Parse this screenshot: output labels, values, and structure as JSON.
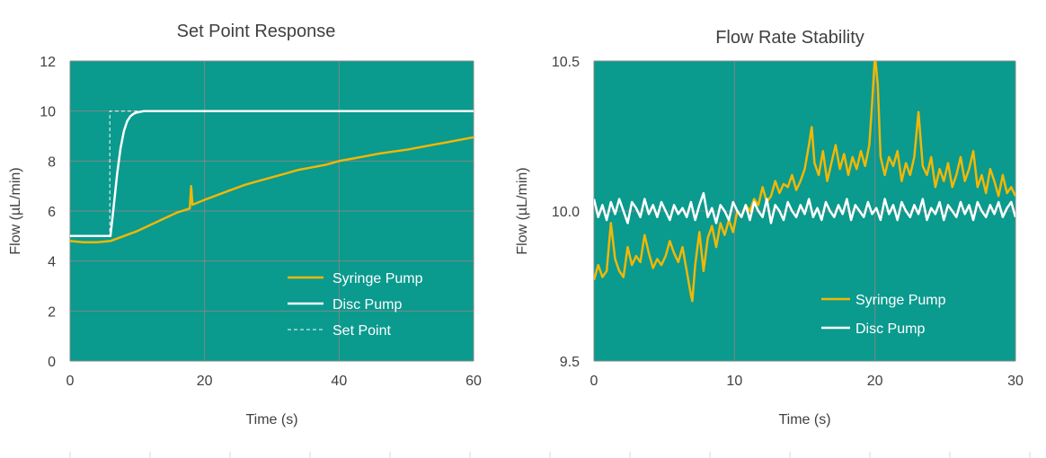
{
  "colors": {
    "plot_background": "#0a9a8e",
    "grid": "#7b8a86",
    "syringe": "#f2b705",
    "disc": "#ffffff",
    "setpoint": "#ffffff",
    "text": "#404040"
  },
  "chart_data": [
    {
      "type": "line",
      "title": "Set Point Response",
      "xlabel": "Time (s)",
      "ylabel": "Flow (µL/min)",
      "xlim": [
        0,
        60
      ],
      "ylim": [
        0,
        12
      ],
      "x_ticks": [
        0,
        20,
        40,
        60
      ],
      "x_tick_labels": [
        "0",
        "20",
        "40",
        "60"
      ],
      "y_ticks": [
        0,
        2,
        4,
        6,
        8,
        10,
        12
      ],
      "y_tick_labels": [
        "0",
        "2",
        "4",
        "6",
        "8",
        "10",
        "12"
      ],
      "grid": true,
      "legend_position": "bottom-right",
      "series": [
        {
          "name": "Syringe Pump",
          "style": "solid",
          "x": [
            0,
            2,
            4,
            6,
            8,
            10,
            12,
            14,
            16,
            17.8,
            18.0,
            18.2,
            20,
            22,
            24,
            26,
            28,
            30,
            32,
            34,
            36,
            38,
            40,
            42,
            44,
            46,
            48,
            50,
            52,
            54,
            56,
            58,
            60
          ],
          "y": [
            4.8,
            4.75,
            4.75,
            4.8,
            5.0,
            5.2,
            5.45,
            5.7,
            5.95,
            6.1,
            7.0,
            6.25,
            6.45,
            6.65,
            6.85,
            7.05,
            7.2,
            7.35,
            7.5,
            7.65,
            7.75,
            7.85,
            8.0,
            8.1,
            8.2,
            8.3,
            8.38,
            8.45,
            8.55,
            8.65,
            8.75,
            8.85,
            8.95
          ]
        },
        {
          "name": "Disc Pump",
          "style": "solid",
          "x": [
            0,
            2,
            4,
            6,
            6.5,
            7,
            7.5,
            8,
            8.5,
            9,
            9.5,
            10,
            11,
            12,
            15,
            20,
            25,
            30,
            35,
            40,
            45,
            50,
            55,
            60
          ],
          "y": [
            5.0,
            5.0,
            5.0,
            5.0,
            6.2,
            7.5,
            8.5,
            9.2,
            9.6,
            9.8,
            9.9,
            9.95,
            10.0,
            10.0,
            10.0,
            10.0,
            10.0,
            10.0,
            10.0,
            10.0,
            10.0,
            10.0,
            10.0,
            10.0
          ]
        },
        {
          "name": "Set Point",
          "style": "dashed",
          "x": [
            0,
            5.9,
            5.9,
            60
          ],
          "y": [
            5.0,
            5.0,
            10.0,
            10.0
          ]
        }
      ]
    },
    {
      "type": "line",
      "title": "Flow Rate Stability",
      "xlabel": "Time (s)",
      "ylabel": "Flow (µL/min)",
      "xlim": [
        0,
        30
      ],
      "ylim": [
        9.5,
        10.5
      ],
      "x_ticks": [
        0,
        10,
        20,
        30
      ],
      "x_tick_labels": [
        "0",
        "10",
        "20",
        "30"
      ],
      "y_ticks": [
        9.5,
        10.0,
        10.5
      ],
      "y_tick_labels": [
        "9.5",
        "10.0",
        "10.5"
      ],
      "grid": true,
      "legend_position": "bottom-right",
      "series": [
        {
          "name": "Syringe Pump",
          "style": "solid",
          "x": [
            0,
            0.3,
            0.6,
            0.9,
            1.2,
            1.5,
            1.8,
            2.1,
            2.4,
            2.7,
            3.0,
            3.3,
            3.6,
            3.9,
            4.2,
            4.5,
            4.8,
            5.1,
            5.4,
            5.7,
            6.0,
            6.3,
            6.6,
            6.9,
            7.0,
            7.2,
            7.5,
            7.8,
            8.1,
            8.4,
            8.7,
            9.0,
            9.3,
            9.6,
            9.9,
            10.2,
            10.5,
            10.8,
            11.1,
            11.4,
            11.7,
            12.0,
            12.3,
            12.6,
            12.9,
            13.2,
            13.5,
            13.8,
            14.1,
            14.4,
            14.7,
            15.0,
            15.3,
            15.5,
            15.7,
            16.0,
            16.3,
            16.6,
            16.9,
            17.2,
            17.5,
            17.8,
            18.1,
            18.4,
            18.7,
            19.0,
            19.3,
            19.6,
            19.8,
            20.0,
            20.2,
            20.4,
            20.7,
            21.0,
            21.3,
            21.6,
            21.9,
            22.2,
            22.5,
            22.8,
            23.1,
            23.4,
            23.7,
            24.0,
            24.3,
            24.6,
            24.9,
            25.2,
            25.5,
            25.8,
            26.1,
            26.4,
            26.7,
            27.0,
            27.3,
            27.6,
            27.9,
            28.2,
            28.5,
            28.8,
            29.1,
            29.4,
            29.7,
            30.0
          ],
          "y": [
            9.77,
            9.82,
            9.78,
            9.8,
            9.96,
            9.84,
            9.8,
            9.78,
            9.88,
            9.82,
            9.85,
            9.83,
            9.92,
            9.86,
            9.81,
            9.84,
            9.82,
            9.85,
            9.9,
            9.86,
            9.83,
            9.88,
            9.8,
            9.72,
            9.7,
            9.82,
            9.93,
            9.8,
            9.91,
            9.95,
            9.88,
            9.96,
            9.92,
            9.97,
            9.93,
            10.0,
            9.98,
            10.02,
            10.0,
            10.04,
            10.02,
            10.08,
            10.03,
            10.05,
            10.1,
            10.06,
            10.09,
            10.08,
            10.12,
            10.07,
            10.1,
            10.14,
            10.22,
            10.28,
            10.16,
            10.12,
            10.2,
            10.1,
            10.16,
            10.22,
            10.14,
            10.19,
            10.12,
            10.18,
            10.14,
            10.2,
            10.15,
            10.22,
            10.36,
            10.52,
            10.42,
            10.18,
            10.12,
            10.18,
            10.15,
            10.2,
            10.1,
            10.16,
            10.12,
            10.18,
            10.33,
            10.15,
            10.12,
            10.18,
            10.08,
            10.14,
            10.1,
            10.16,
            10.08,
            10.12,
            10.18,
            10.1,
            10.14,
            10.2,
            10.08,
            10.12,
            10.06,
            10.14,
            10.1,
            10.05,
            10.12,
            10.06,
            10.08,
            10.05
          ]
        },
        {
          "name": "Disc Pump",
          "style": "solid",
          "x": [
            0,
            0.3,
            0.6,
            0.9,
            1.2,
            1.5,
            1.8,
            2.1,
            2.4,
            2.7,
            3.0,
            3.3,
            3.6,
            3.9,
            4.2,
            4.5,
            4.8,
            5.1,
            5.4,
            5.7,
            6.0,
            6.3,
            6.6,
            6.9,
            7.2,
            7.5,
            7.8,
            8.1,
            8.4,
            8.7,
            9.0,
            9.3,
            9.6,
            9.9,
            10.2,
            10.5,
            10.8,
            11.1,
            11.4,
            11.7,
            12.0,
            12.3,
            12.6,
            12.9,
            13.2,
            13.5,
            13.8,
            14.1,
            14.4,
            14.7,
            15.0,
            15.3,
            15.6,
            15.9,
            16.2,
            16.5,
            16.8,
            17.1,
            17.4,
            17.7,
            18.0,
            18.3,
            18.6,
            18.9,
            19.2,
            19.5,
            19.8,
            20.1,
            20.4,
            20.7,
            21.0,
            21.3,
            21.6,
            21.9,
            22.2,
            22.5,
            22.8,
            23.1,
            23.4,
            23.7,
            24.0,
            24.3,
            24.6,
            24.9,
            25.2,
            25.5,
            25.8,
            26.1,
            26.4,
            26.7,
            27.0,
            27.3,
            27.6,
            27.9,
            28.2,
            28.5,
            28.8,
            29.1,
            29.4,
            29.7,
            30.0
          ],
          "y": [
            10.04,
            9.98,
            10.02,
            9.97,
            10.03,
            9.99,
            10.04,
            10.0,
            9.96,
            10.03,
            10.01,
            9.98,
            10.04,
            9.99,
            10.02,
            9.98,
            10.03,
            10.0,
            9.97,
            10.02,
            9.99,
            10.01,
            9.98,
            10.03,
            9.97,
            10.02,
            10.06,
            9.98,
            10.01,
            9.96,
            10.02,
            10.0,
            9.97,
            10.03,
            10.0,
            9.98,
            10.02,
            9.97,
            10.03,
            10.0,
            9.98,
            10.04,
            9.96,
            10.02,
            10.0,
            9.97,
            10.03,
            10.0,
            9.98,
            10.02,
            9.99,
            10.04,
            9.98,
            10.01,
            9.97,
            10.03,
            10.0,
            9.98,
            10.02,
            9.99,
            10.04,
            9.97,
            10.02,
            10.0,
            9.98,
            10.03,
            9.99,
            10.01,
            9.97,
            10.04,
            9.99,
            10.02,
            9.97,
            10.03,
            10.0,
            9.98,
            10.02,
            9.99,
            10.04,
            9.97,
            10.01,
            9.99,
            10.03,
            9.97,
            10.02,
            10.0,
            9.98,
            10.03,
            9.99,
            10.02,
            9.97,
            10.03,
            10.0,
            9.98,
            10.02,
            9.99,
            10.03,
            9.98,
            10.01,
            10.03,
            9.98
          ]
        }
      ]
    }
  ]
}
